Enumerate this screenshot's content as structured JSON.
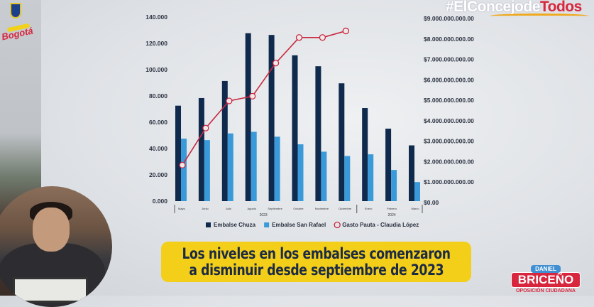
{
  "chart_data": {
    "type": "bar",
    "categories": [
      "Mayo",
      "Junio",
      "Julio",
      "Agosto",
      "Septiembre",
      "Octubre",
      "Noviembre",
      "Diciembre",
      "Enero",
      "Febrero",
      "Marzo"
    ],
    "year_groups": [
      {
        "label": "2023",
        "from": 0,
        "to": 7
      },
      {
        "label": "2024",
        "from": 8,
        "to": 10
      }
    ],
    "series": [
      {
        "name": "Embalse Chuza",
        "type": "bar",
        "axis": "left",
        "color": "#0f2a4d",
        "values": [
          72600,
          78400,
          91400,
          127700,
          126400,
          110900,
          102600,
          89600,
          70800,
          55100,
          42400
        ]
      },
      {
        "name": "Embalse San Rafael",
        "type": "bar",
        "axis": "left",
        "color": "#3a9ad9",
        "values": [
          47500,
          46400,
          51500,
          52700,
          49000,
          43200,
          37600,
          34300,
          35600,
          23700,
          14500
        ]
      },
      {
        "name": "Gasto Pauta - Claudia López",
        "type": "line",
        "axis": "right",
        "color": "#c8283f",
        "values": [
          1760000000,
          3570000000,
          4900000000,
          5130000000,
          6750000000,
          8000000000,
          8000000000,
          8320000000,
          null,
          null,
          null
        ]
      }
    ],
    "left_axis": {
      "ylim": [
        0,
        140000
      ],
      "ticks": [
        "0.000",
        "20.000",
        "40.000",
        "60.000",
        "80.000",
        "100.000",
        "120.000",
        "140.000"
      ]
    },
    "right_axis": {
      "ylim": [
        0,
        9000000000
      ],
      "ticks": [
        "$0.00",
        "$1.000.000.000.00",
        "$2.000.000.000.00",
        "$3.000.000.000.00",
        "$4.000.000.000.00",
        "$5.000.000.000.00",
        "$6.000.000.000.00",
        "$7.000.000.000.00",
        "$8.000.000.000.00",
        "$9.000.000.000.00"
      ]
    },
    "grid": false,
    "legend_placement": "bottom"
  },
  "caption": {
    "line1": "Los niveles en los embalses comenzaron",
    "line2": "a disminuir desde septiembre de 2023"
  },
  "hashtag": {
    "white": "#ElConcejode",
    "red": "Todos"
  },
  "brand": {
    "first": "DANIEL",
    "last": "BRICEÑO",
    "tagline": "OPOSICIÓN CIUDADANA"
  },
  "logo": {
    "city": "Bogotá"
  }
}
